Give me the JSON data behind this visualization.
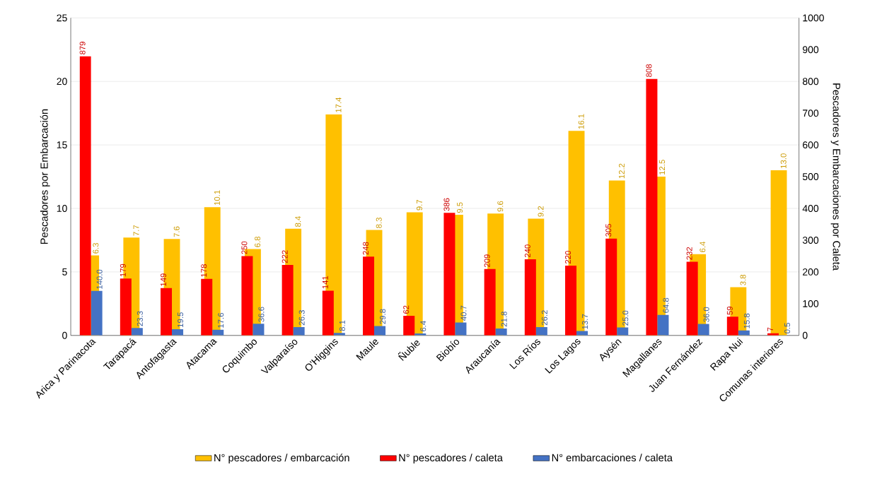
{
  "chart_data": {
    "type": "bar",
    "ylabel": "Pescadores por Embarcación",
    "y2label": "Pescadores y Embarcaciones por Caleta",
    "categories": [
      "Arica y Parinacota",
      "Tarapacá",
      "Antofagasta",
      "Atacama",
      "Coquimbo",
      "Valparaíso",
      "O'Higgins",
      "Maule",
      "Ñuble",
      "Biobío",
      "Araucanía",
      "Los Ríos",
      "Los Lagos",
      "Aysén",
      "Magallanes",
      "Juan Fernández",
      "Rapa Nui",
      "Comunas interiores"
    ],
    "series": [
      {
        "name": "N° pescadores / embarcación",
        "color": "#ffc000",
        "values": [
          6.3,
          7.7,
          7.6,
          10.1,
          6.8,
          8.4,
          17.4,
          8.3,
          9.7,
          9.5,
          9.6,
          9.2,
          16.1,
          12.2,
          12.5,
          6.4,
          3.8,
          13.0
        ],
        "value_labels": [
          "6.3",
          "7.7",
          "7.6",
          "10.1",
          "6.8",
          "8.4",
          "17.4",
          "8.3",
          "9.7",
          "9.5",
          "9.6",
          "9.2",
          "16.1",
          "12.2",
          "12.5",
          "6.4",
          "3.8",
          "13.0"
        ]
      },
      {
        "name": "N° pescadores / caleta",
        "color": "#ff0000",
        "axis": "y2",
        "values": [
          879,
          179,
          149,
          178,
          250,
          222,
          141,
          248,
          62,
          386,
          209,
          240,
          220,
          305,
          808,
          232,
          59,
          7
        ],
        "value_labels": [
          "879",
          "179",
          "149",
          "178",
          "250",
          "222",
          "141",
          "248",
          "62",
          "386",
          "209",
          "240",
          "220",
          "305",
          "808",
          "232",
          "59",
          "7"
        ]
      },
      {
        "name": "N° embarcaciones / caleta",
        "color": "#4472c4",
        "axis": "y2",
        "values": [
          140.0,
          23.3,
          19.5,
          17.6,
          36.6,
          26.3,
          8.1,
          29.8,
          6.4,
          40.7,
          21.8,
          26.2,
          13.7,
          25.0,
          64.8,
          36.0,
          15.8,
          0.5
        ],
        "value_labels": [
          "140.0",
          "23.3",
          "19.5",
          "17.6",
          "36.6",
          "26.3",
          "8.1",
          "29.8",
          "6.4",
          "40.7",
          "21.8",
          "26.2",
          "13.7",
          "25.0",
          "64.8",
          "36.0",
          "15.8",
          "0.5"
        ]
      }
    ],
    "ylim": [
      0,
      25
    ],
    "yticks": [
      0,
      5,
      10,
      15,
      20,
      25
    ],
    "y2lim": [
      0,
      1000
    ],
    "y2ticks": [
      0,
      100,
      200,
      300,
      400,
      500,
      600,
      700,
      800,
      900,
      1000
    ],
    "grid": "y",
    "legend": "bottom"
  }
}
